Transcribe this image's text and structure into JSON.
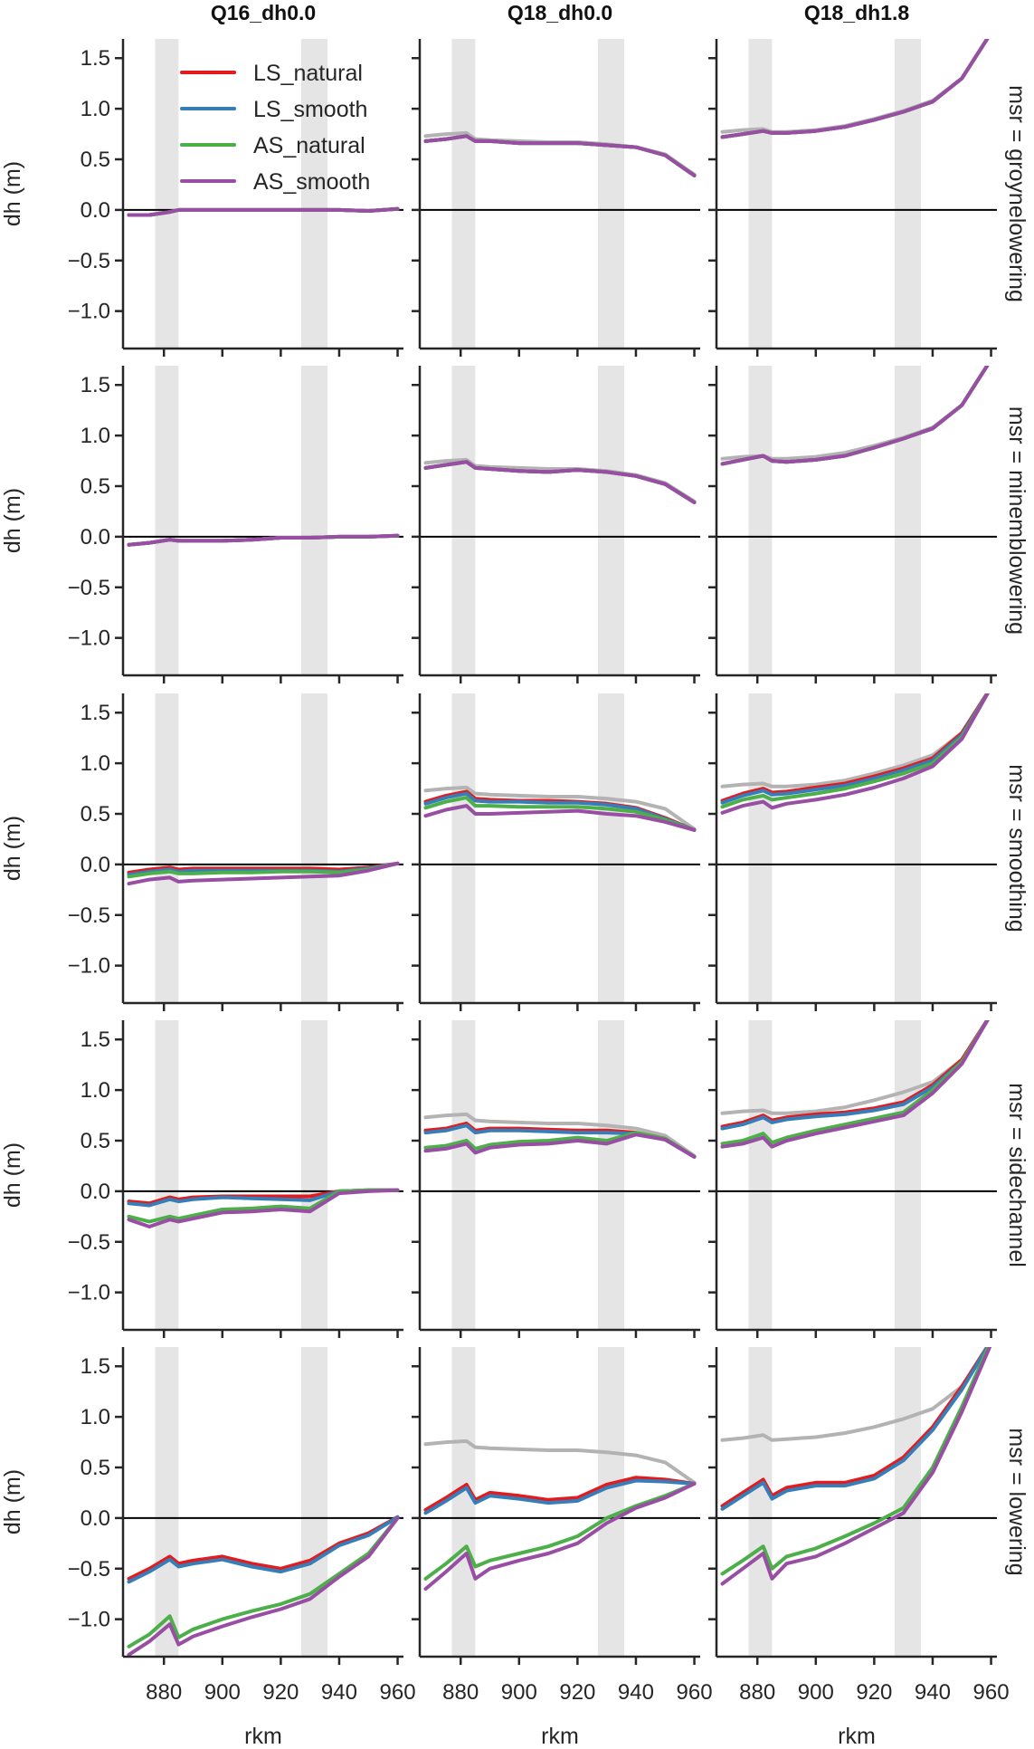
{
  "chart_data": {
    "type": "line",
    "layout": "facet-grid",
    "col_titles": [
      "Q16_dh0.0",
      "Q18_dh0.0",
      "Q18_dh1.8"
    ],
    "row_titles": [
      "msr = groynelowering",
      "msr = minemblowering",
      "msr = smoothing",
      "msr = sidechannel",
      "msr = lowering"
    ],
    "xlabel": "rkm",
    "ylabel": "dh (m)",
    "xlim": [
      866,
      962
    ],
    "ylim": [
      -1.37,
      1.69
    ],
    "xticks": [
      880,
      900,
      920,
      940,
      960
    ],
    "yticks": [
      1.5,
      1.0,
      0.5,
      0.0,
      -0.5,
      -1.0
    ],
    "ytick_labels": [
      "1.5",
      "1.0",
      "0.5",
      "0.0",
      "−0.5",
      "−1.0"
    ],
    "xtick_labels": [
      "880",
      "900",
      "920",
      "940",
      "960"
    ],
    "shaded_ranges": [
      [
        877,
        885
      ],
      [
        927,
        936
      ]
    ],
    "zero_line": 0,
    "legend": {
      "placement": "upper-left of first panel",
      "entries": [
        "LS_natural",
        "LS_smooth",
        "AS_natural",
        "AS_smooth"
      ]
    },
    "colors": {
      "LS_natural": "#e41a1c",
      "LS_smooth": "#377eb8",
      "AS_natural": "#4daf4a",
      "AS_smooth": "#984ea3",
      "reference": "#b3b3b3",
      "shade": "#e5e5e5"
    },
    "x": [
      868,
      875,
      882,
      885,
      890,
      900,
      910,
      920,
      930,
      940,
      950,
      960
    ],
    "panels": [
      [
        {
          "reference": null,
          "LS_natural": [
            -0.05,
            -0.05,
            -0.02,
            0,
            0,
            0,
            0,
            0,
            0,
            0,
            -0.01,
            0.01
          ],
          "LS_smooth": [
            -0.05,
            -0.05,
            -0.02,
            0,
            0,
            0,
            0,
            0,
            0,
            0,
            -0.01,
            0.01
          ],
          "AS_natural": [
            -0.05,
            -0.05,
            -0.02,
            0,
            0,
            0,
            0,
            0,
            0,
            0,
            -0.01,
            0.01
          ],
          "AS_smooth": [
            -0.05,
            -0.05,
            -0.02,
            0,
            0,
            0,
            0,
            0,
            0,
            0,
            -0.01,
            0.01
          ]
        },
        {
          "reference": [
            0.73,
            0.75,
            0.76,
            0.7,
            0.69,
            0.68,
            0.67,
            0.67,
            0.65,
            0.62,
            0.55,
            0.35
          ],
          "LS_natural": [
            0.68,
            0.7,
            0.73,
            0.68,
            0.68,
            0.66,
            0.66,
            0.66,
            0.64,
            0.62,
            0.54,
            0.34
          ],
          "LS_smooth": [
            0.68,
            0.7,
            0.73,
            0.68,
            0.68,
            0.66,
            0.66,
            0.66,
            0.64,
            0.62,
            0.54,
            0.34
          ],
          "AS_natural": [
            0.68,
            0.7,
            0.73,
            0.68,
            0.68,
            0.66,
            0.66,
            0.66,
            0.64,
            0.62,
            0.54,
            0.34
          ],
          "AS_smooth": [
            0.68,
            0.7,
            0.73,
            0.68,
            0.68,
            0.66,
            0.66,
            0.66,
            0.64,
            0.62,
            0.54,
            0.34
          ]
        },
        {
          "reference": [
            0.77,
            0.79,
            0.8,
            0.77,
            0.77,
            0.79,
            0.83,
            0.9,
            0.98,
            1.08,
            1.3,
            1.75
          ],
          "LS_natural": [
            0.72,
            0.75,
            0.78,
            0.76,
            0.76,
            0.78,
            0.82,
            0.89,
            0.97,
            1.07,
            1.3,
            1.75
          ],
          "LS_smooth": [
            0.72,
            0.75,
            0.78,
            0.76,
            0.76,
            0.78,
            0.82,
            0.89,
            0.97,
            1.07,
            1.3,
            1.75
          ],
          "AS_natural": [
            0.72,
            0.75,
            0.78,
            0.76,
            0.76,
            0.78,
            0.82,
            0.89,
            0.97,
            1.07,
            1.3,
            1.75
          ],
          "AS_smooth": [
            0.72,
            0.75,
            0.78,
            0.76,
            0.76,
            0.78,
            0.82,
            0.89,
            0.97,
            1.07,
            1.3,
            1.75
          ]
        }
      ],
      [
        {
          "reference": null,
          "LS_natural": [
            -0.08,
            -0.06,
            -0.03,
            -0.04,
            -0.04,
            -0.04,
            -0.03,
            -0.01,
            -0.01,
            0,
            0,
            0.01
          ],
          "LS_smooth": [
            -0.08,
            -0.06,
            -0.03,
            -0.04,
            -0.04,
            -0.04,
            -0.03,
            -0.01,
            -0.01,
            0,
            0,
            0.01
          ],
          "AS_natural": [
            -0.08,
            -0.06,
            -0.03,
            -0.04,
            -0.04,
            -0.04,
            -0.03,
            -0.01,
            -0.01,
            0,
            0,
            0.01
          ],
          "AS_smooth": [
            -0.08,
            -0.06,
            -0.03,
            -0.04,
            -0.04,
            -0.04,
            -0.03,
            -0.01,
            -0.01,
            0,
            0,
            0.01
          ]
        },
        {
          "reference": [
            0.73,
            0.75,
            0.76,
            0.7,
            0.69,
            0.68,
            0.67,
            0.67,
            0.65,
            0.61,
            0.53,
            0.35
          ],
          "LS_natural": [
            0.68,
            0.71,
            0.74,
            0.68,
            0.67,
            0.65,
            0.64,
            0.66,
            0.64,
            0.6,
            0.52,
            0.34
          ],
          "LS_smooth": [
            0.68,
            0.71,
            0.74,
            0.68,
            0.67,
            0.65,
            0.64,
            0.66,
            0.64,
            0.6,
            0.52,
            0.34
          ],
          "AS_natural": [
            0.68,
            0.71,
            0.74,
            0.68,
            0.67,
            0.65,
            0.64,
            0.66,
            0.64,
            0.6,
            0.52,
            0.34
          ],
          "AS_smooth": [
            0.68,
            0.71,
            0.74,
            0.68,
            0.67,
            0.65,
            0.64,
            0.66,
            0.64,
            0.6,
            0.52,
            0.34
          ]
        },
        {
          "reference": [
            0.77,
            0.79,
            0.8,
            0.77,
            0.77,
            0.79,
            0.83,
            0.9,
            0.98,
            1.08,
            1.3,
            1.75
          ],
          "LS_natural": [
            0.72,
            0.76,
            0.8,
            0.75,
            0.74,
            0.76,
            0.8,
            0.88,
            0.97,
            1.07,
            1.3,
            1.75
          ],
          "LS_smooth": [
            0.72,
            0.76,
            0.8,
            0.75,
            0.74,
            0.76,
            0.8,
            0.88,
            0.97,
            1.07,
            1.3,
            1.75
          ],
          "AS_natural": [
            0.72,
            0.76,
            0.8,
            0.75,
            0.74,
            0.76,
            0.8,
            0.88,
            0.97,
            1.07,
            1.3,
            1.75
          ],
          "AS_smooth": [
            0.72,
            0.76,
            0.8,
            0.75,
            0.74,
            0.76,
            0.8,
            0.88,
            0.97,
            1.07,
            1.3,
            1.75
          ]
        }
      ],
      [
        {
          "reference": null,
          "LS_natural": [
            -0.08,
            -0.05,
            -0.03,
            -0.05,
            -0.04,
            -0.04,
            -0.04,
            -0.04,
            -0.04,
            -0.05,
            -0.03,
            0.01
          ],
          "LS_smooth": [
            -0.1,
            -0.07,
            -0.05,
            -0.07,
            -0.06,
            -0.06,
            -0.06,
            -0.06,
            -0.06,
            -0.07,
            -0.04,
            0.01
          ],
          "AS_natural": [
            -0.12,
            -0.09,
            -0.07,
            -0.09,
            -0.09,
            -0.08,
            -0.08,
            -0.07,
            -0.07,
            -0.08,
            -0.05,
            0.01
          ],
          "AS_smooth": [
            -0.19,
            -0.15,
            -0.13,
            -0.17,
            -0.16,
            -0.15,
            -0.14,
            -0.13,
            -0.12,
            -0.11,
            -0.06,
            0.01
          ]
        },
        {
          "reference": [
            0.73,
            0.75,
            0.76,
            0.7,
            0.69,
            0.68,
            0.67,
            0.67,
            0.65,
            0.62,
            0.55,
            0.35
          ],
          "LS_natural": [
            0.62,
            0.68,
            0.72,
            0.65,
            0.64,
            0.63,
            0.63,
            0.62,
            0.6,
            0.56,
            0.46,
            0.34
          ],
          "LS_smooth": [
            0.6,
            0.66,
            0.7,
            0.63,
            0.62,
            0.62,
            0.61,
            0.61,
            0.59,
            0.55,
            0.45,
            0.34
          ],
          "AS_natural": [
            0.56,
            0.62,
            0.66,
            0.58,
            0.58,
            0.57,
            0.57,
            0.57,
            0.55,
            0.52,
            0.44,
            0.34
          ],
          "AS_smooth": [
            0.48,
            0.54,
            0.58,
            0.5,
            0.5,
            0.51,
            0.52,
            0.53,
            0.5,
            0.48,
            0.42,
            0.34
          ]
        },
        {
          "reference": [
            0.77,
            0.79,
            0.8,
            0.77,
            0.77,
            0.79,
            0.83,
            0.9,
            0.98,
            1.08,
            1.3,
            1.75
          ],
          "LS_natural": [
            0.63,
            0.7,
            0.75,
            0.71,
            0.72,
            0.76,
            0.8,
            0.87,
            0.95,
            1.05,
            1.3,
            1.75
          ],
          "LS_smooth": [
            0.61,
            0.68,
            0.73,
            0.69,
            0.7,
            0.74,
            0.78,
            0.85,
            0.93,
            1.03,
            1.28,
            1.75
          ],
          "AS_natural": [
            0.57,
            0.64,
            0.68,
            0.64,
            0.66,
            0.7,
            0.75,
            0.82,
            0.9,
            1.0,
            1.26,
            1.75
          ],
          "AS_smooth": [
            0.51,
            0.58,
            0.62,
            0.56,
            0.6,
            0.64,
            0.69,
            0.76,
            0.85,
            0.97,
            1.24,
            1.75
          ]
        }
      ],
      [
        {
          "reference": null,
          "LS_natural": [
            -0.1,
            -0.12,
            -0.06,
            -0.08,
            -0.06,
            -0.05,
            -0.05,
            -0.05,
            -0.05,
            0.0,
            0.01,
            0.01
          ],
          "LS_smooth": [
            -0.12,
            -0.14,
            -0.08,
            -0.1,
            -0.08,
            -0.06,
            -0.07,
            -0.08,
            -0.09,
            0.0,
            0.01,
            0.01
          ],
          "AS_natural": [
            -0.25,
            -0.3,
            -0.25,
            -0.27,
            -0.24,
            -0.18,
            -0.17,
            -0.15,
            -0.17,
            0.0,
            0.01,
            0.01
          ],
          "AS_smooth": [
            -0.28,
            -0.35,
            -0.28,
            -0.3,
            -0.27,
            -0.21,
            -0.2,
            -0.18,
            -0.2,
            -0.02,
            0.0,
            0.01
          ]
        },
        {
          "reference": [
            0.73,
            0.75,
            0.76,
            0.7,
            0.69,
            0.68,
            0.67,
            0.67,
            0.65,
            0.62,
            0.55,
            0.35
          ],
          "LS_natural": [
            0.6,
            0.62,
            0.67,
            0.6,
            0.62,
            0.62,
            0.61,
            0.6,
            0.6,
            0.58,
            0.52,
            0.34
          ],
          "LS_smooth": [
            0.58,
            0.6,
            0.65,
            0.58,
            0.6,
            0.6,
            0.59,
            0.58,
            0.58,
            0.57,
            0.51,
            0.34
          ],
          "AS_natural": [
            0.43,
            0.45,
            0.5,
            0.42,
            0.46,
            0.49,
            0.5,
            0.53,
            0.5,
            0.58,
            0.52,
            0.34
          ],
          "AS_smooth": [
            0.4,
            0.42,
            0.47,
            0.38,
            0.43,
            0.46,
            0.47,
            0.5,
            0.47,
            0.56,
            0.51,
            0.34
          ]
        },
        {
          "reference": [
            0.77,
            0.79,
            0.8,
            0.77,
            0.77,
            0.79,
            0.83,
            0.9,
            0.98,
            1.08,
            1.3,
            1.75
          ],
          "LS_natural": [
            0.64,
            0.68,
            0.75,
            0.7,
            0.73,
            0.76,
            0.78,
            0.82,
            0.88,
            1.05,
            1.3,
            1.75
          ],
          "LS_smooth": [
            0.62,
            0.66,
            0.73,
            0.68,
            0.71,
            0.74,
            0.76,
            0.8,
            0.86,
            1.03,
            1.28,
            1.75
          ],
          "AS_natural": [
            0.47,
            0.5,
            0.57,
            0.48,
            0.53,
            0.6,
            0.66,
            0.72,
            0.78,
            1.0,
            1.28,
            1.75
          ],
          "AS_smooth": [
            0.44,
            0.47,
            0.53,
            0.44,
            0.5,
            0.57,
            0.63,
            0.69,
            0.75,
            0.97,
            1.26,
            1.75
          ]
        }
      ],
      [
        {
          "reference": null,
          "LS_natural": [
            -0.6,
            -0.5,
            -0.38,
            -0.45,
            -0.42,
            -0.38,
            -0.45,
            -0.5,
            -0.42,
            -0.25,
            -0.15,
            0.01
          ],
          "LS_smooth": [
            -0.63,
            -0.53,
            -0.41,
            -0.48,
            -0.45,
            -0.41,
            -0.48,
            -0.53,
            -0.45,
            -0.27,
            -0.17,
            0.01
          ],
          "AS_natural": [
            -1.27,
            -1.15,
            -0.97,
            -1.18,
            -1.1,
            -1.0,
            -0.92,
            -0.85,
            -0.75,
            -0.55,
            -0.35,
            0.0
          ],
          "AS_smooth": [
            -1.35,
            -1.22,
            -1.05,
            -1.25,
            -1.17,
            -1.07,
            -0.98,
            -0.9,
            -0.8,
            -0.58,
            -0.38,
            0.0
          ]
        },
        {
          "reference": [
            0.73,
            0.75,
            0.76,
            0.7,
            0.69,
            0.68,
            0.67,
            0.67,
            0.65,
            0.62,
            0.55,
            0.35
          ],
          "LS_natural": [
            0.08,
            0.2,
            0.33,
            0.18,
            0.25,
            0.22,
            0.18,
            0.2,
            0.33,
            0.4,
            0.38,
            0.34
          ],
          "LS_smooth": [
            0.05,
            0.17,
            0.3,
            0.15,
            0.22,
            0.19,
            0.15,
            0.17,
            0.3,
            0.37,
            0.36,
            0.34
          ],
          "AS_natural": [
            -0.6,
            -0.45,
            -0.28,
            -0.48,
            -0.42,
            -0.35,
            -0.28,
            -0.18,
            0.0,
            0.12,
            0.22,
            0.34
          ],
          "AS_smooth": [
            -0.7,
            -0.53,
            -0.35,
            -0.6,
            -0.5,
            -0.42,
            -0.35,
            -0.25,
            -0.05,
            0.1,
            0.2,
            0.34
          ]
        },
        {
          "reference": [
            0.77,
            0.79,
            0.82,
            0.77,
            0.78,
            0.8,
            0.84,
            0.9,
            0.98,
            1.08,
            1.3,
            1.75
          ],
          "LS_natural": [
            0.12,
            0.25,
            0.38,
            0.22,
            0.3,
            0.35,
            0.35,
            0.42,
            0.6,
            0.9,
            1.3,
            1.75
          ],
          "LS_smooth": [
            0.09,
            0.22,
            0.35,
            0.19,
            0.27,
            0.32,
            0.32,
            0.39,
            0.57,
            0.87,
            1.27,
            1.75
          ],
          "AS_natural": [
            -0.55,
            -0.42,
            -0.28,
            -0.5,
            -0.38,
            -0.3,
            -0.18,
            -0.05,
            0.1,
            0.5,
            1.1,
            1.75
          ],
          "AS_smooth": [
            -0.65,
            -0.5,
            -0.35,
            -0.6,
            -0.45,
            -0.38,
            -0.25,
            -0.1,
            0.05,
            0.45,
            1.05,
            1.72
          ]
        }
      ]
    ]
  }
}
